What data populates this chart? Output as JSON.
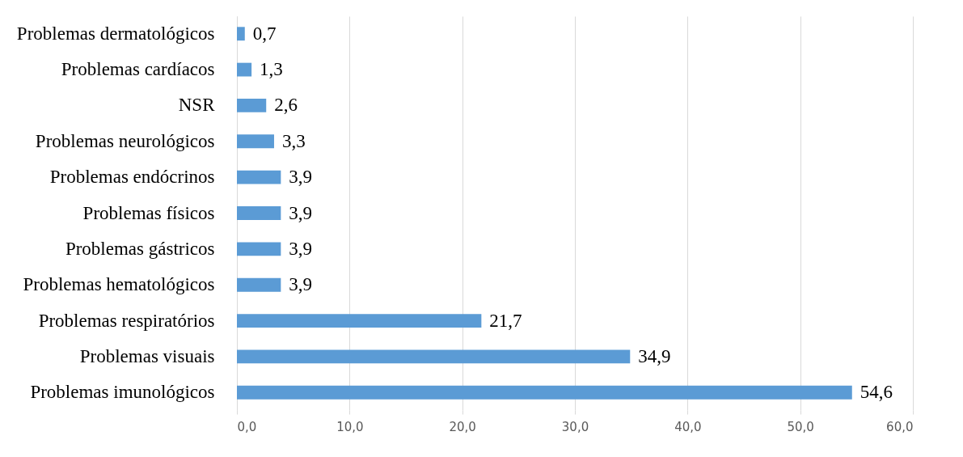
{
  "chart_data": {
    "type": "bar",
    "orientation": "horizontal",
    "categories": [
      "Problemas dermatológicos",
      "Problemas cardíacos",
      "NSR",
      "Problemas neurológicos",
      "Problemas endócrinos",
      "Problemas físicos",
      "Problemas gástricos",
      "Problemas hematológicos",
      "Problemas respiratórios",
      "Problemas visuais",
      "Problemas imunológicos"
    ],
    "values": [
      0.7,
      1.3,
      2.6,
      3.3,
      3.9,
      3.9,
      3.9,
      3.9,
      21.7,
      34.9,
      54.6
    ],
    "value_labels": [
      "0,7",
      "1,3",
      "2,6",
      "3,3",
      "3,9",
      "3,9",
      "3,9",
      "3,9",
      "21,7",
      "34,9",
      "54,6"
    ],
    "color": "#5b9bd5",
    "xlim": [
      0,
      60
    ],
    "xticks": [
      {
        "value": 0,
        "label": "0,0"
      },
      {
        "value": 10,
        "label": "10,0"
      },
      {
        "value": 20,
        "label": "20,0"
      },
      {
        "value": 30,
        "label": "30,0"
      },
      {
        "value": 40,
        "label": "40,0"
      },
      {
        "value": 50,
        "label": "50,0"
      },
      {
        "value": 60,
        "label": "60,0"
      }
    ],
    "grid": "x"
  }
}
